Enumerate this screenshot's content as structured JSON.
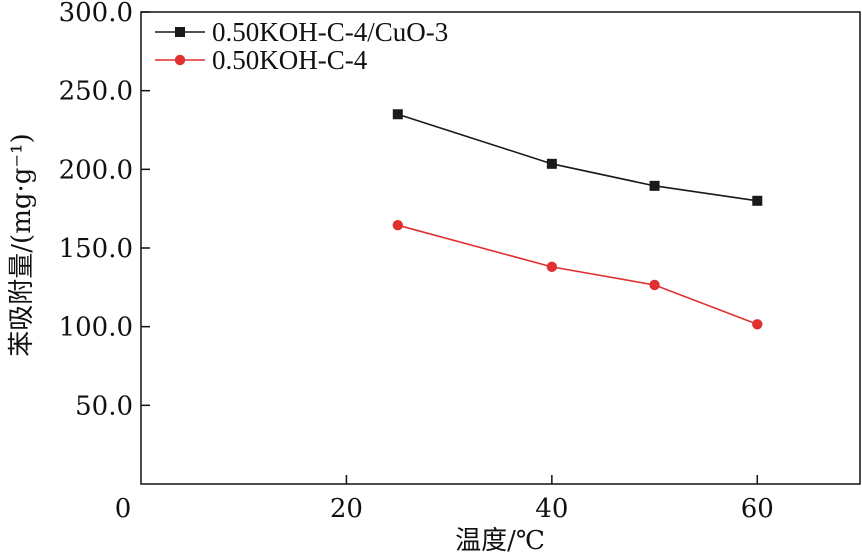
{
  "chart_data": {
    "type": "line",
    "xlabel": "温度/℃",
    "ylabel": "苯吸附量/(mg·g⁻¹)",
    "xlim": [
      0,
      70
    ],
    "ylim": [
      0,
      300
    ],
    "x_ticks": [
      "0",
      "20",
      "40",
      "60"
    ],
    "y_ticks": [
      "50.0",
      "100.0",
      "150.0",
      "200.0",
      "250.0",
      "300.0"
    ],
    "x_tick_values": [
      0,
      20,
      40,
      60
    ],
    "y_tick_values": [
      50,
      100,
      150,
      200,
      250,
      300
    ],
    "grid": false,
    "legend_position": "top-left",
    "series": [
      {
        "name": "0.50KOH-C-4/CuO-3",
        "marker": "square",
        "color": "#1a1a1a",
        "x": [
          25,
          40,
          50,
          60
        ],
        "values": [
          235,
          203.5,
          189.5,
          180
        ]
      },
      {
        "name": "0.50KOH-C-4",
        "marker": "circle",
        "color": "#e03030",
        "x": [
          25,
          40,
          50,
          60
        ],
        "values": [
          164.5,
          138,
          126.5,
          101.5
        ]
      }
    ]
  }
}
